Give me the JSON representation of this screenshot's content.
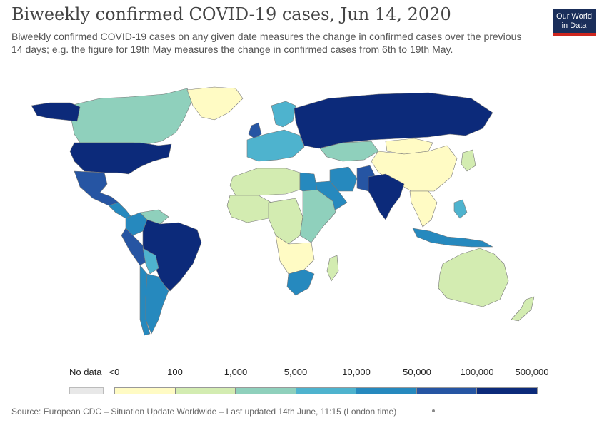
{
  "header": {
    "title": "Biweekly confirmed COVID-19 cases, Jun 14, 2020",
    "subtitle": "Biweekly confirmed COVID-19 cases on any given date measures the change in confirmed cases over the previous 14 days; e.g. the figure for 19th May measures the change in confirmed cases from 6th to 19th May.",
    "logo_line1": "Our World",
    "logo_line2": "in Data"
  },
  "legend": {
    "no_data_label": "No data",
    "no_data_color": "#e8e8e8",
    "tick_labels": [
      "<0",
      "100",
      "1,000",
      "5,000",
      "10,000",
      "50,000",
      "100,000",
      "500,000"
    ],
    "colors": [
      "#fffbc4",
      "#d3ecb1",
      "#8fd0bc",
      "#4eb3ce",
      "#2689be",
      "#2655a3",
      "#0c2a7a"
    ]
  },
  "footer": {
    "source": "Source: European CDC – Situation Update Worldwide – Last updated 14th June, 11:15 (London time)"
  },
  "regions": [
    {
      "name": "Canada",
      "color": "#4eb3ce"
    },
    {
      "name": "United States",
      "color": "#0c2a7a"
    },
    {
      "name": "Alaska",
      "color": "#0c2a7a"
    },
    {
      "name": "Greenland",
      "color": "#fffbc4"
    },
    {
      "name": "Mexico",
      "color": "#2655a3"
    },
    {
      "name": "Central America",
      "color": "#2689be"
    },
    {
      "name": "Brazil",
      "color": "#0c2a7a"
    },
    {
      "name": "Peru",
      "color": "#2655a3"
    },
    {
      "name": "Colombia",
      "color": "#2689be"
    },
    {
      "name": "Chile",
      "color": "#2689be"
    },
    {
      "name": "Argentina",
      "color": "#2689be"
    },
    {
      "name": "Bolivia",
      "color": "#4eb3ce"
    },
    {
      "name": "Venezuela",
      "color": "#8fd0bc"
    },
    {
      "name": "Russia",
      "color": "#0c2a7a"
    },
    {
      "name": "Kazakhstan",
      "color": "#8fd0bc"
    },
    {
      "name": "China",
      "color": "#fffbc4"
    },
    {
      "name": "Mongolia",
      "color": "#fffbc4"
    },
    {
      "name": "India",
      "color": "#0c2a7a"
    },
    {
      "name": "Pakistan",
      "color": "#2655a3"
    },
    {
      "name": "Iran",
      "color": "#2689be"
    },
    {
      "name": "Saudi Arabia",
      "color": "#2689be"
    },
    {
      "name": "Europe West",
      "color": "#4eb3ce"
    },
    {
      "name": "United Kingdom",
      "color": "#2655a3"
    },
    {
      "name": "Scandinavia",
      "color": "#4eb3ce"
    },
    {
      "name": "North Africa",
      "color": "#d3ecb1"
    },
    {
      "name": "Egypt",
      "color": "#2689be"
    },
    {
      "name": "West Africa",
      "color": "#d3ecb1"
    },
    {
      "name": "Central Africa",
      "color": "#d3ecb1"
    },
    {
      "name": "East Africa",
      "color": "#8fd0bc"
    },
    {
      "name": "Southern Africa",
      "color": "#fffbc4"
    },
    {
      "name": "South Africa",
      "color": "#2689be"
    },
    {
      "name": "Madagascar",
      "color": "#d3ecb1"
    },
    {
      "name": "Southeast Asia",
      "color": "#fffbc4"
    },
    {
      "name": "Indonesia",
      "color": "#2689be"
    },
    {
      "name": "Philippines",
      "color": "#4eb3ce"
    },
    {
      "name": "Japan",
      "color": "#d3ecb1"
    },
    {
      "name": "Australia",
      "color": "#d3ecb1"
    },
    {
      "name": "New Zealand",
      "color": "#d3ecb1"
    }
  ]
}
